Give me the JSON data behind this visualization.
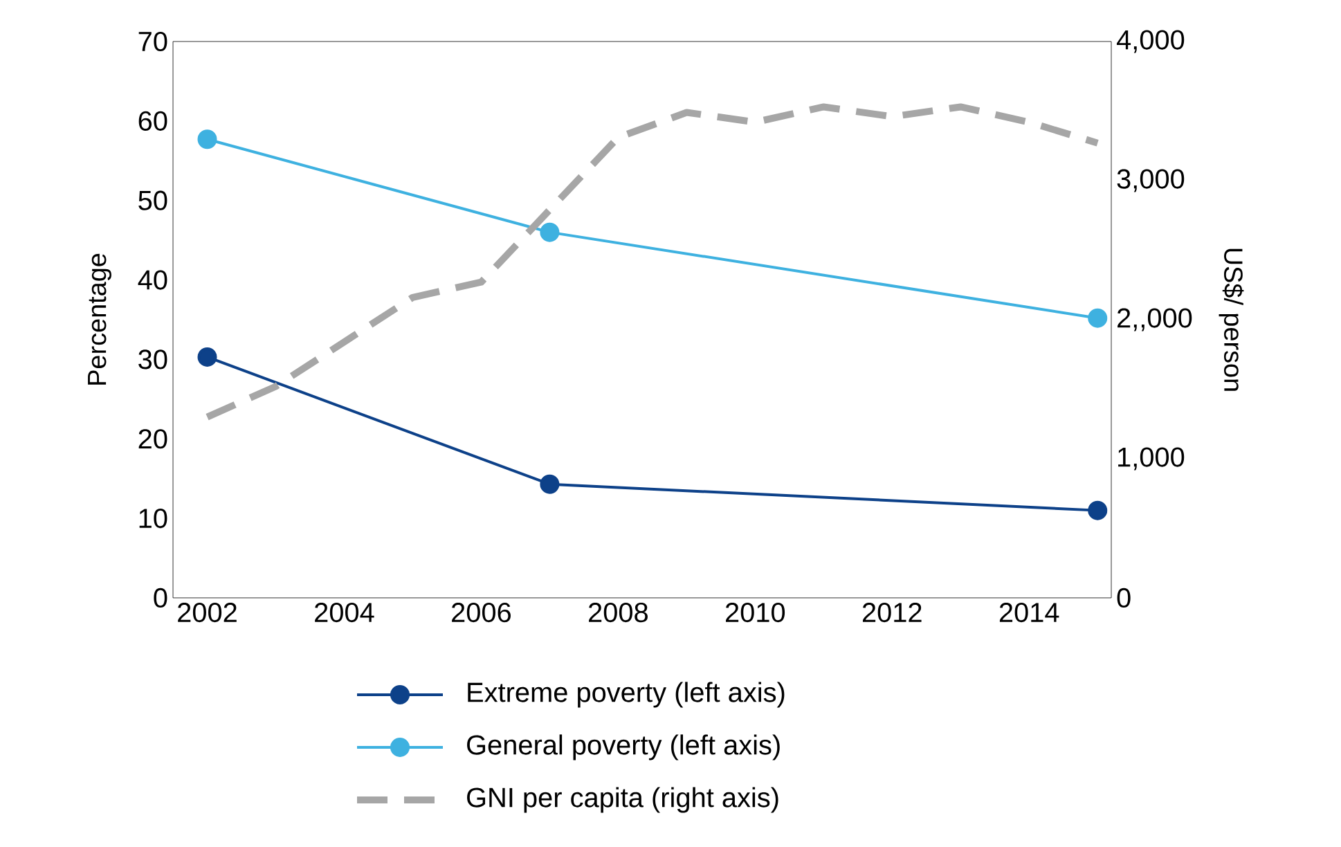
{
  "chart_data": {
    "type": "line",
    "ylabel": "Percentage",
    "y2label": "US$/ person",
    "xlim": [
      2001.5,
      2015.2
    ],
    "xticks": [
      2002,
      2004,
      2006,
      2008,
      2010,
      2012,
      2014
    ],
    "ylim": [
      0,
      70
    ],
    "yticks": [
      0,
      10,
      20,
      30,
      40,
      50,
      60,
      70
    ],
    "y2lim": [
      0,
      4000
    ],
    "y2ticks": [
      {
        "value": 0,
        "label": "0"
      },
      {
        "value": 1000,
        "label": "1,000"
      },
      {
        "value": 2000,
        "label": "2,,000"
      },
      {
        "value": 3000,
        "label": "3,000"
      },
      {
        "value": 4000,
        "label": "4,000"
      }
    ],
    "grid": false,
    "legend": "bottom",
    "series": [
      {
        "name": "Extreme poverty (left axis)",
        "color": "#0d4189",
        "marker": "circle",
        "line_style": "solid",
        "x": [
          2002,
          2007,
          2015
        ],
        "values": [
          30.3,
          14.3,
          11.0
        ]
      },
      {
        "name": "General poverty (left axis)",
        "color": "#3eb1e0",
        "marker": "circle",
        "line_style": "solid",
        "x": [
          2002,
          2007,
          2015
        ],
        "values": [
          57.7,
          46.0,
          35.2
        ]
      },
      {
        "name": "GNI per capita (right axis)",
        "color": "#a6a6a6",
        "marker": "none",
        "line_style": "dashed",
        "axis": "y2",
        "x": [
          2002,
          2003,
          2004,
          2005,
          2006,
          2007,
          2008,
          2009,
          2010,
          2011,
          2012,
          2013,
          2014,
          2015
        ],
        "values": [
          1300,
          1520,
          1840,
          2160,
          2270,
          2790,
          3310,
          3490,
          3420,
          3530,
          3460,
          3530,
          3420,
          3270
        ]
      }
    ]
  }
}
